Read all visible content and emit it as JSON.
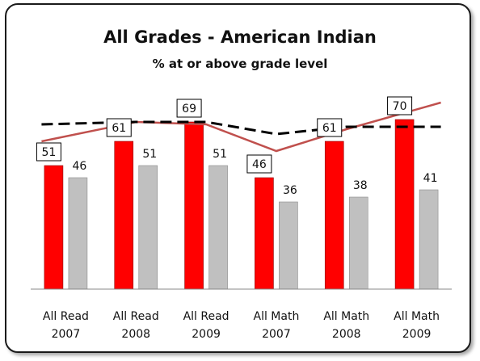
{
  "chart_data": {
    "type": "bar",
    "title": "All Grades - American Indian",
    "subtitle": "% at or above grade level",
    "categories": [
      [
        "All Read",
        "2007"
      ],
      [
        "All Read",
        "2008"
      ],
      [
        "All Read",
        "2009"
      ],
      [
        "All Math",
        "2007"
      ],
      [
        "All Math",
        "2008"
      ],
      [
        "All Math",
        "2009"
      ]
    ],
    "series": [
      {
        "values": [
          51,
          61,
          69,
          46,
          61,
          70
        ],
        "color": "#ff0000",
        "kind": "bar",
        "boxed_labels": true
      },
      {
        "values": [
          46,
          51,
          51,
          36,
          38,
          41
        ],
        "color": "#c0c0c0",
        "kind": "bar"
      },
      {
        "values": [
          61,
          69,
          68,
          57,
          66,
          77
        ],
        "color": "#c0504d",
        "kind": "line"
      },
      {
        "values": [
          68,
          69,
          69,
          64,
          67,
          67
        ],
        "color": "#000000",
        "kind": "line",
        "dashed": true
      }
    ],
    "ylim": [
      0,
      100
    ],
    "grid": false,
    "legend": "none"
  }
}
